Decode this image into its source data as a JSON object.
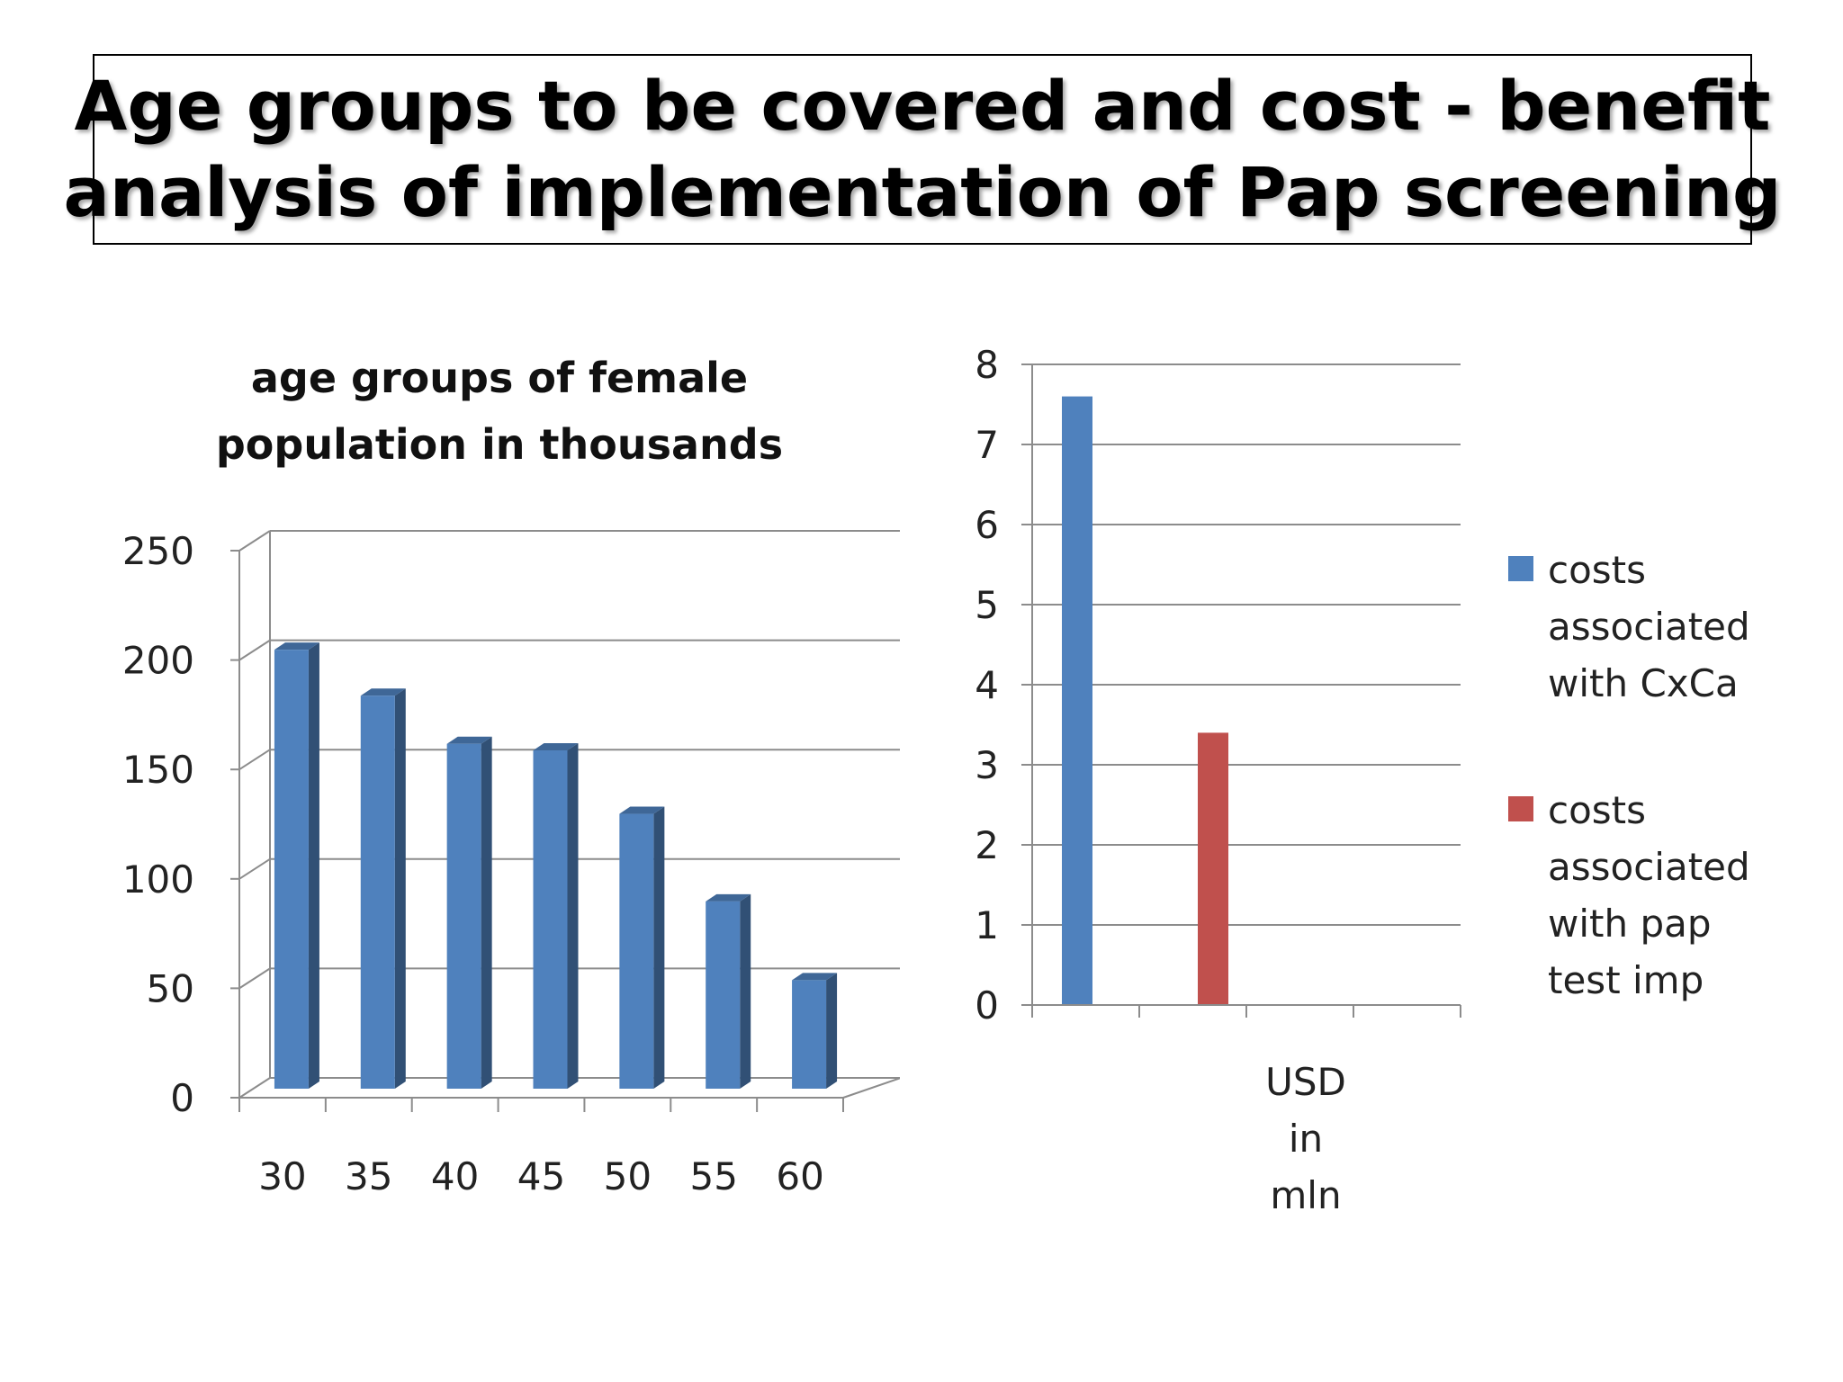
{
  "slide": {
    "title_line1": "Age groups to be covered and cost - benefit",
    "title_line2": "analysis of implementation of Pap screening"
  },
  "chart_data": [
    {
      "type": "bar",
      "title_line1": "age groups of female",
      "title_line2": "population in thousands",
      "categories": [
        "30",
        "35",
        "40",
        "45",
        "50",
        "55",
        "60"
      ],
      "values": [
        208,
        187,
        165,
        162,
        133,
        93,
        57
      ],
      "ylim": [
        0,
        250
      ],
      "yticks": [
        "0",
        "50",
        "100",
        "150",
        "200",
        "250"
      ],
      "grid": true,
      "style": "3d-column",
      "color": "#4f81bd"
    },
    {
      "type": "bar",
      "categories": [
        "USD",
        "in",
        "mln"
      ],
      "xlabel_lines": [
        "USD",
        "in",
        "mln"
      ],
      "series": [
        {
          "name": "costs associated with CxCa",
          "legend_lines": [
            "costs",
            "associated",
            "with CxCa"
          ],
          "value": 7.6,
          "color": "#4f81bd"
        },
        {
          "name": "costs associated with pap test imp",
          "legend_lines": [
            "costs",
            "associated",
            "with pap",
            "test imp"
          ],
          "value": 3.4,
          "color": "#c0504d"
        }
      ],
      "ylim": [
        0,
        8
      ],
      "yticks": [
        "0",
        "1",
        "2",
        "3",
        "4",
        "5",
        "6",
        "7",
        "8"
      ],
      "grid": true,
      "legend": "right"
    }
  ]
}
